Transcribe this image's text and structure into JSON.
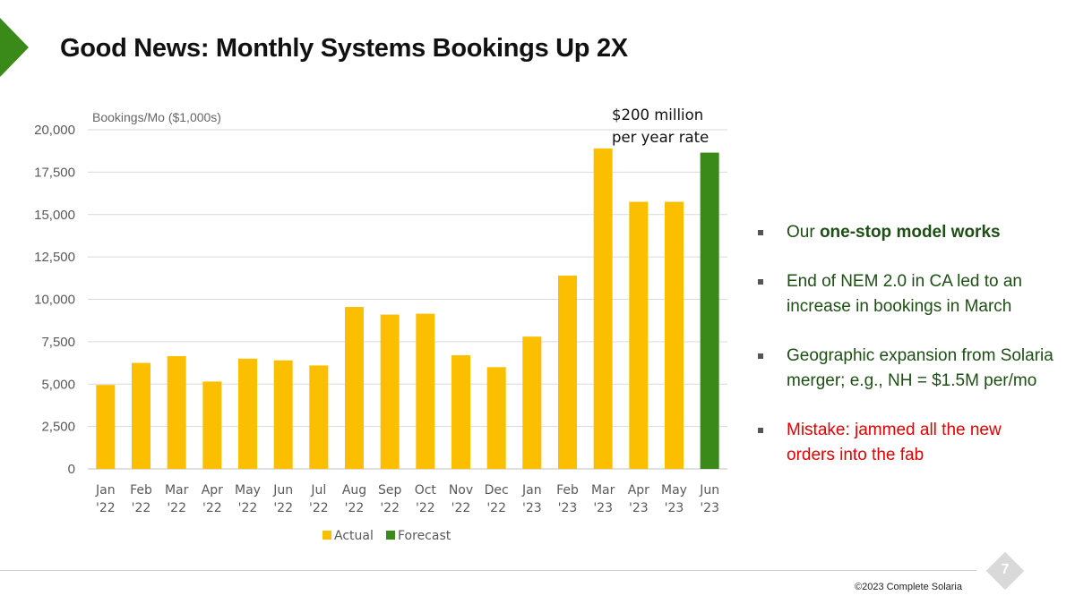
{
  "slide": {
    "title": "Good News: Monthly Systems Bookings Up 2X",
    "page_number": "7",
    "copyright": "©2023 Complete Solaria",
    "accent_color": "#3a8a1a"
  },
  "annotation": {
    "line1": "$200 million",
    "line2": "per year rate"
  },
  "bullets": [
    {
      "prefix": "Our ",
      "bold": "one-stop model works",
      "suffix": ""
    },
    {
      "prefix": "End of NEM 2.0 in CA led to an increase in bookings in March",
      "bold": "",
      "suffix": ""
    },
    {
      "prefix": "Geographic expansion from Solaria merger; e.g., NH = $1.5M per/mo",
      "bold": "",
      "suffix": ""
    },
    {
      "prefix": "Mistake: jammed all the new orders into the fab",
      "bold": "",
      "suffix": ""
    }
  ],
  "chart_data": {
    "type": "bar",
    "ylabel": "Bookings/Mo ($1,000s)",
    "ylim": [
      0,
      20000
    ],
    "yticks": [
      "0",
      "2,500",
      "5,000",
      "7,500",
      "10,000",
      "12,500",
      "15,000",
      "17,500",
      "20,000"
    ],
    "ytick_values": [
      0,
      2500,
      5000,
      7500,
      10000,
      12500,
      15000,
      17500,
      20000
    ],
    "grid": true,
    "legend_position": "bottom",
    "categories": [
      [
        "Jan",
        "'22"
      ],
      [
        "Feb",
        "'22"
      ],
      [
        "Mar",
        "'22"
      ],
      [
        "Apr",
        "'22"
      ],
      [
        "May",
        "'22"
      ],
      [
        "Jun",
        "'22"
      ],
      [
        "Jul",
        "'22"
      ],
      [
        "Aug",
        "'22"
      ],
      [
        "Sep",
        "'22"
      ],
      [
        "Oct",
        "'22"
      ],
      [
        "Nov",
        "'22"
      ],
      [
        "Dec",
        "'22"
      ],
      [
        "Jan",
        "'23"
      ],
      [
        "Feb",
        "'23"
      ],
      [
        "Mar",
        "'23"
      ],
      [
        "Apr",
        "'23"
      ],
      [
        "May",
        "'23"
      ],
      [
        "Jun",
        "'23"
      ]
    ],
    "values": [
      4950,
      6250,
      6650,
      5150,
      6500,
      6400,
      6100,
      9550,
      9100,
      9150,
      6700,
      6000,
      7800,
      11400,
      18900,
      15750,
      15750,
      18650
    ],
    "bar_kind": [
      "Actual",
      "Actual",
      "Actual",
      "Actual",
      "Actual",
      "Actual",
      "Actual",
      "Actual",
      "Actual",
      "Actual",
      "Actual",
      "Actual",
      "Actual",
      "Actual",
      "Actual",
      "Actual",
      "Actual",
      "Forecast"
    ],
    "series": [
      {
        "name": "Actual",
        "color": "#fbbf00"
      },
      {
        "name": "Forecast",
        "color": "#3a8a1a"
      }
    ]
  }
}
